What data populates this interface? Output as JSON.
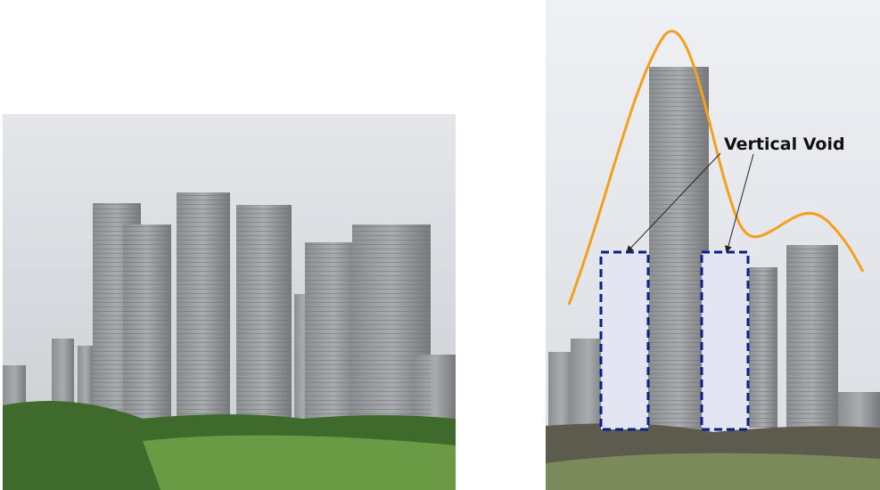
{
  "annotation": {
    "label": "Vertical Void"
  }
}
